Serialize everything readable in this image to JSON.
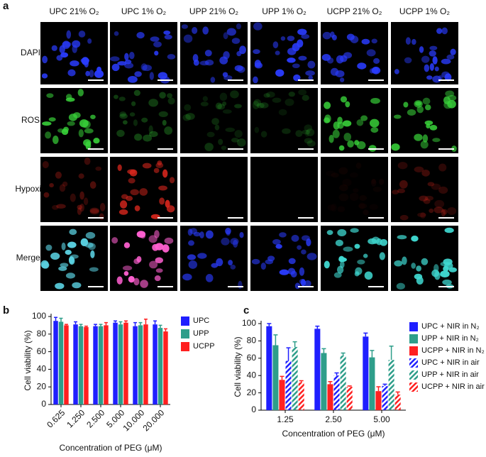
{
  "panel_a": {
    "label": "a",
    "columns": [
      "UPC 21% O₂",
      "UPC 1% O₂",
      "UPP 21% O₂",
      "UPP 1% O₂",
      "UCPP 21% O₂",
      "UCPP 1% O₂"
    ],
    "rows": [
      "DAPI",
      "ROS",
      "Hypoxia",
      "Merged"
    ]
  },
  "chart_data": [
    {
      "type": "bar",
      "label": "b",
      "ylabel": "Cell viability (%)",
      "xlabel": "Concentration of PEG (μM)",
      "categories": [
        "0.625",
        "1.250",
        "2.500",
        "5.000",
        "10.000",
        "20.000"
      ],
      "series": [
        {
          "name": "UPC",
          "color": "#1f1fff",
          "values": [
            95,
            91,
            89,
            93,
            89,
            91
          ],
          "errors": [
            4,
            3,
            2,
            2,
            4,
            4
          ]
        },
        {
          "name": "UPP",
          "color": "#2e9e8a",
          "values": [
            94,
            89,
            89,
            91,
            90,
            87
          ],
          "errors": [
            4,
            2,
            2,
            3,
            3,
            3
          ]
        },
        {
          "name": "UCPP",
          "color": "#ff2020",
          "values": [
            90,
            88,
            90,
            93,
            91,
            83
          ],
          "errors": [
            1,
            1,
            3,
            2,
            6,
            3
          ]
        }
      ],
      "ylim": [
        0,
        100
      ],
      "yticks": [
        0,
        20,
        40,
        60,
        80,
        100
      ],
      "legend_position": "right"
    },
    {
      "type": "bar",
      "label": "c",
      "ylabel": "Cell viability (%)",
      "xlabel": "Concentration of PEG (μM)",
      "categories": [
        "1.25",
        "2.50",
        "5.00"
      ],
      "series": [
        {
          "name": "UPC + NIR in N₂",
          "color": "#1f1fff",
          "pattern": "solid",
          "values": [
            97,
            94,
            85
          ],
          "errors": [
            3,
            3,
            4
          ]
        },
        {
          "name": "UPP + NIR in N₂",
          "color": "#2e9e8a",
          "pattern": "solid",
          "values": [
            75,
            66,
            61
          ],
          "errors": [
            12,
            5,
            8
          ]
        },
        {
          "name": "UCPP + NIR in N₂",
          "color": "#ff2020",
          "pattern": "solid",
          "values": [
            35,
            30,
            22
          ],
          "errors": [
            4,
            3,
            5
          ]
        },
        {
          "name": "UPC + NIR in air",
          "color": "#1f1fff",
          "pattern": "hatch",
          "values": [
            57,
            40,
            28
          ],
          "errors": [
            15,
            3,
            2
          ]
        },
        {
          "name": "UPP + NIR in air",
          "color": "#2e9e8a",
          "pattern": "hatch",
          "values": [
            73,
            63,
            58
          ],
          "errors": [
            6,
            3,
            16
          ]
        },
        {
          "name": "UCPP + NIR in air",
          "color": "#ff2020",
          "pattern": "hatch",
          "values": [
            32,
            27,
            18
          ],
          "errors": [
            2,
            1,
            3
          ]
        }
      ],
      "ylim": [
        0,
        100
      ],
      "yticks": [
        0,
        20,
        40,
        60,
        80,
        100
      ],
      "legend_position": "right"
    }
  ]
}
